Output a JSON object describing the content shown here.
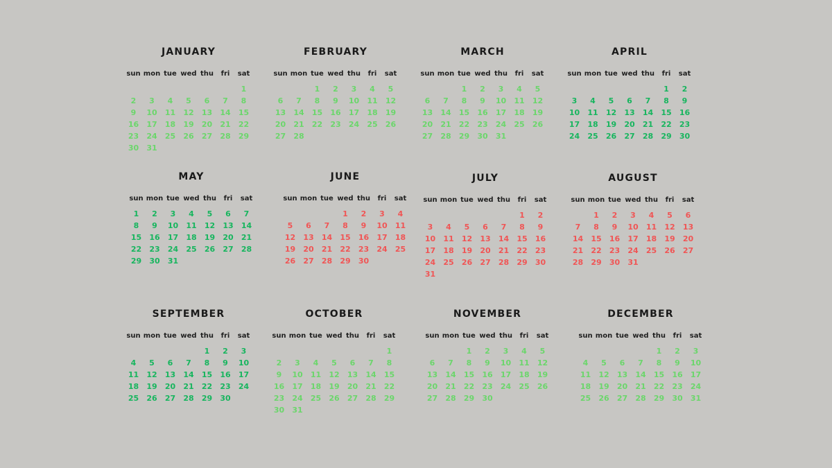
{
  "weekdays": [
    "sun",
    "mon",
    "tue",
    "wed",
    "thu",
    "fri",
    "sat"
  ],
  "colors": {
    "light_green": "#6bd66b",
    "deep_green": "#17b55e",
    "red": "#f05555"
  },
  "months": [
    {
      "name": "JANUARY",
      "offset": 6,
      "days": 31,
      "theme": "light"
    },
    {
      "name": "FEBRUARY",
      "offset": 2,
      "days": 28,
      "theme": "light"
    },
    {
      "name": "MARCH",
      "offset": 2,
      "days": 31,
      "theme": "light"
    },
    {
      "name": "APRIL",
      "offset": 5,
      "days": 30,
      "theme": "deep"
    },
    {
      "name": "MAY",
      "offset": 0,
      "days": 31,
      "theme": "deep"
    },
    {
      "name": "JUNE",
      "offset": 3,
      "days": 30,
      "theme": "red"
    },
    {
      "name": "JULY",
      "offset": 5,
      "days": 31,
      "theme": "red"
    },
    {
      "name": "AUGUST",
      "offset": 1,
      "days": 31,
      "theme": "red"
    },
    {
      "name": "SEPTEMBER",
      "offset": 4,
      "days": 30,
      "theme": "deep"
    },
    {
      "name": "OCTOBER",
      "offset": 6,
      "days": 31,
      "theme": "light"
    },
    {
      "name": "NOVEMBER",
      "offset": 2,
      "days": 30,
      "theme": "light"
    },
    {
      "name": "DECEMBER",
      "offset": 4,
      "days": 31,
      "theme": "light"
    }
  ]
}
